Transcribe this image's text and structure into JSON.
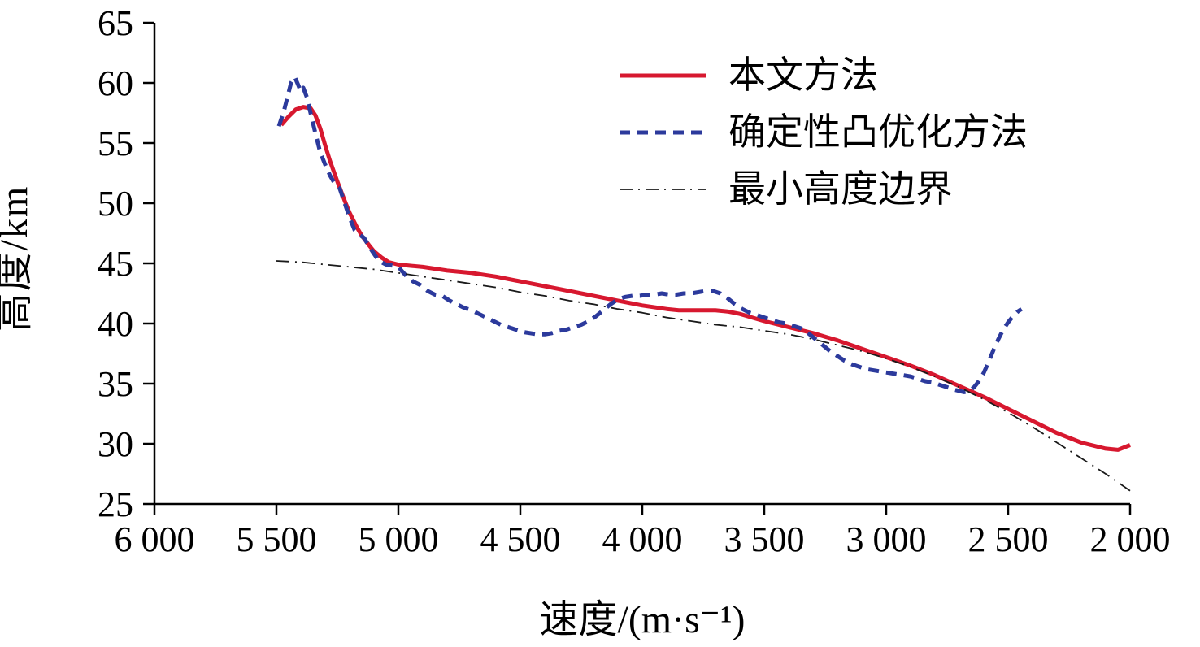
{
  "figure": {
    "background": "#ffffff",
    "axis_color": "#000000"
  },
  "chart_data": {
    "type": "line",
    "title": "",
    "xlabel": "速度/(m·s⁻¹)",
    "ylabel": "高度/km",
    "xlim": [
      6000,
      2000
    ],
    "ylim": [
      25,
      65
    ],
    "x_axis_reversed": true,
    "grid": false,
    "legend_position": "upper center-right",
    "x_ticks": [
      {
        "value": 6000,
        "label": "6 000"
      },
      {
        "value": 5500,
        "label": "5 500"
      },
      {
        "value": 5000,
        "label": "5 000"
      },
      {
        "value": 4500,
        "label": "4 500"
      },
      {
        "value": 4000,
        "label": "4 000"
      },
      {
        "value": 3500,
        "label": "3 500"
      },
      {
        "value": 3000,
        "label": "3 000"
      },
      {
        "value": 2500,
        "label": "2 500"
      },
      {
        "value": 2000,
        "label": "2 000"
      }
    ],
    "y_ticks": [
      {
        "value": 25,
        "label": "25"
      },
      {
        "value": 30,
        "label": "30"
      },
      {
        "value": 35,
        "label": "35"
      },
      {
        "value": 40,
        "label": "40"
      },
      {
        "value": 45,
        "label": "45"
      },
      {
        "value": 50,
        "label": "50"
      },
      {
        "value": 55,
        "label": "55"
      },
      {
        "value": 60,
        "label": "60"
      },
      {
        "value": 65,
        "label": "65"
      }
    ],
    "series": [
      {
        "name": "本文方法",
        "color": "#d7182f",
        "line_style": "solid",
        "line_width": 5,
        "points": [
          [
            5480,
            56.5
          ],
          [
            5450,
            57.2
          ],
          [
            5420,
            57.8
          ],
          [
            5390,
            58.0
          ],
          [
            5360,
            57.9
          ],
          [
            5340,
            57.3
          ],
          [
            5320,
            56.2
          ],
          [
            5300,
            54.8
          ],
          [
            5280,
            53.5
          ],
          [
            5250,
            51.8
          ],
          [
            5220,
            50.2
          ],
          [
            5200,
            49.2
          ],
          [
            5170,
            48.0
          ],
          [
            5150,
            47.3
          ],
          [
            5120,
            46.5
          ],
          [
            5100,
            46.0
          ],
          [
            5070,
            45.5
          ],
          [
            5040,
            45.1
          ],
          [
            5000,
            44.9
          ],
          [
            4950,
            44.8
          ],
          [
            4900,
            44.7
          ],
          [
            4800,
            44.4
          ],
          [
            4700,
            44.2
          ],
          [
            4600,
            43.9
          ],
          [
            4500,
            43.5
          ],
          [
            4400,
            43.1
          ],
          [
            4300,
            42.7
          ],
          [
            4200,
            42.3
          ],
          [
            4100,
            41.9
          ],
          [
            4000,
            41.5
          ],
          [
            3900,
            41.2
          ],
          [
            3850,
            41.1
          ],
          [
            3800,
            41.1
          ],
          [
            3750,
            41.1
          ],
          [
            3700,
            41.1
          ],
          [
            3650,
            41.0
          ],
          [
            3600,
            40.8
          ],
          [
            3550,
            40.5
          ],
          [
            3500,
            40.2
          ],
          [
            3400,
            39.7
          ],
          [
            3300,
            39.2
          ],
          [
            3200,
            38.6
          ],
          [
            3100,
            37.9
          ],
          [
            3000,
            37.2
          ],
          [
            2900,
            36.5
          ],
          [
            2800,
            35.7
          ],
          [
            2700,
            34.8
          ],
          [
            2600,
            33.9
          ],
          [
            2500,
            32.9
          ],
          [
            2400,
            31.9
          ],
          [
            2300,
            30.9
          ],
          [
            2200,
            30.1
          ],
          [
            2100,
            29.6
          ],
          [
            2050,
            29.5
          ],
          [
            2000,
            29.9
          ]
        ]
      },
      {
        "name": "确定性凸优化方法",
        "color": "#2c3a9c",
        "line_style": "dashed",
        "line_width": 5,
        "points": [
          [
            5490,
            56.4
          ],
          [
            5470,
            57.6
          ],
          [
            5455,
            58.8
          ],
          [
            5440,
            60.0
          ],
          [
            5425,
            60.5
          ],
          [
            5410,
            59.8
          ],
          [
            5400,
            59.3
          ],
          [
            5390,
            59.6
          ],
          [
            5375,
            58.8
          ],
          [
            5360,
            57.5
          ],
          [
            5340,
            55.8
          ],
          [
            5320,
            54.2
          ],
          [
            5300,
            53.2
          ],
          [
            5280,
            52.3
          ],
          [
            5260,
            51.6
          ],
          [
            5240,
            51.2
          ],
          [
            5220,
            50.0
          ],
          [
            5200,
            48.8
          ],
          [
            5180,
            47.8
          ],
          [
            5160,
            47.4
          ],
          [
            5140,
            47.1
          ],
          [
            5120,
            46.4
          ],
          [
            5100,
            45.8
          ],
          [
            5080,
            45.2
          ],
          [
            5050,
            44.9
          ],
          [
            5020,
            44.8
          ],
          [
            5000,
            44.7
          ],
          [
            4970,
            44.0
          ],
          [
            4940,
            43.5
          ],
          [
            4910,
            43.2
          ],
          [
            4880,
            42.7
          ],
          [
            4850,
            42.4
          ],
          [
            4820,
            42.3
          ],
          [
            4790,
            41.9
          ],
          [
            4760,
            41.6
          ],
          [
            4730,
            41.3
          ],
          [
            4700,
            41.1
          ],
          [
            4670,
            40.8
          ],
          [
            4640,
            40.5
          ],
          [
            4610,
            40.2
          ],
          [
            4580,
            39.9
          ],
          [
            4550,
            39.7
          ],
          [
            4520,
            39.5
          ],
          [
            4490,
            39.3
          ],
          [
            4460,
            39.2
          ],
          [
            4430,
            39.1
          ],
          [
            4400,
            39.1
          ],
          [
            4370,
            39.2
          ],
          [
            4340,
            39.4
          ],
          [
            4310,
            39.5
          ],
          [
            4280,
            39.7
          ],
          [
            4250,
            39.9
          ],
          [
            4220,
            40.2
          ],
          [
            4190,
            40.6
          ],
          [
            4160,
            41.1
          ],
          [
            4130,
            41.6
          ],
          [
            4100,
            42.0
          ],
          [
            4070,
            42.2
          ],
          [
            4040,
            42.3
          ],
          [
            4010,
            42.3
          ],
          [
            3980,
            42.4
          ],
          [
            3950,
            42.4
          ],
          [
            3920,
            42.5
          ],
          [
            3890,
            42.4
          ],
          [
            3860,
            42.4
          ],
          [
            3830,
            42.5
          ],
          [
            3800,
            42.5
          ],
          [
            3770,
            42.6
          ],
          [
            3740,
            42.7
          ],
          [
            3710,
            42.7
          ],
          [
            3680,
            42.5
          ],
          [
            3650,
            42.1
          ],
          [
            3620,
            41.6
          ],
          [
            3590,
            41.2
          ],
          [
            3560,
            40.9
          ],
          [
            3530,
            40.7
          ],
          [
            3500,
            40.5
          ],
          [
            3470,
            40.3
          ],
          [
            3440,
            40.1
          ],
          [
            3410,
            40.0
          ],
          [
            3380,
            39.8
          ],
          [
            3350,
            39.6
          ],
          [
            3320,
            39.2
          ],
          [
            3290,
            38.7
          ],
          [
            3260,
            38.2
          ],
          [
            3230,
            37.7
          ],
          [
            3200,
            37.3
          ],
          [
            3170,
            36.9
          ],
          [
            3140,
            36.6
          ],
          [
            3110,
            36.4
          ],
          [
            3080,
            36.2
          ],
          [
            3050,
            36.1
          ],
          [
            3020,
            36.0
          ],
          [
            2990,
            35.9
          ],
          [
            2960,
            35.8
          ],
          [
            2930,
            35.7
          ],
          [
            2900,
            35.6
          ],
          [
            2870,
            35.4
          ],
          [
            2840,
            35.2
          ],
          [
            2810,
            35.1
          ],
          [
            2780,
            34.9
          ],
          [
            2750,
            34.7
          ],
          [
            2720,
            34.5
          ],
          [
            2700,
            34.4
          ],
          [
            2680,
            34.3
          ],
          [
            2660,
            34.4
          ],
          [
            2640,
            34.7
          ],
          [
            2620,
            35.2
          ],
          [
            2600,
            35.9
          ],
          [
            2580,
            36.8
          ],
          [
            2560,
            37.8
          ],
          [
            2540,
            38.7
          ],
          [
            2520,
            39.5
          ],
          [
            2500,
            40.1
          ],
          [
            2480,
            40.6
          ],
          [
            2460,
            41.0
          ],
          [
            2445,
            41.2
          ]
        ]
      },
      {
        "name": "最小高度边界",
        "color": "#1a1a1a",
        "line_style": "dashdot",
        "line_width": 1.8,
        "points": [
          [
            5500,
            45.2
          ],
          [
            5400,
            45.1
          ],
          [
            5300,
            44.9
          ],
          [
            5200,
            44.7
          ],
          [
            5100,
            44.5
          ],
          [
            5000,
            44.2
          ],
          [
            4900,
            43.9
          ],
          [
            4800,
            43.6
          ],
          [
            4700,
            43.3
          ],
          [
            4600,
            43.0
          ],
          [
            4500,
            42.6
          ],
          [
            4400,
            42.3
          ],
          [
            4300,
            41.9
          ],
          [
            4200,
            41.6
          ],
          [
            4100,
            41.2
          ],
          [
            4000,
            40.9
          ],
          [
            3900,
            40.5
          ],
          [
            3800,
            40.2
          ],
          [
            3700,
            39.9
          ],
          [
            3600,
            39.7
          ],
          [
            3500,
            39.4
          ],
          [
            3400,
            39.1
          ],
          [
            3300,
            38.7
          ],
          [
            3200,
            38.2
          ],
          [
            3100,
            37.7
          ],
          [
            3000,
            37.1
          ],
          [
            2900,
            36.4
          ],
          [
            2800,
            35.6
          ],
          [
            2700,
            34.7
          ],
          [
            2600,
            33.7
          ],
          [
            2500,
            32.6
          ],
          [
            2400,
            31.4
          ],
          [
            2300,
            30.1
          ],
          [
            2200,
            28.8
          ],
          [
            2100,
            27.5
          ],
          [
            2000,
            26.1
          ]
        ]
      }
    ]
  }
}
